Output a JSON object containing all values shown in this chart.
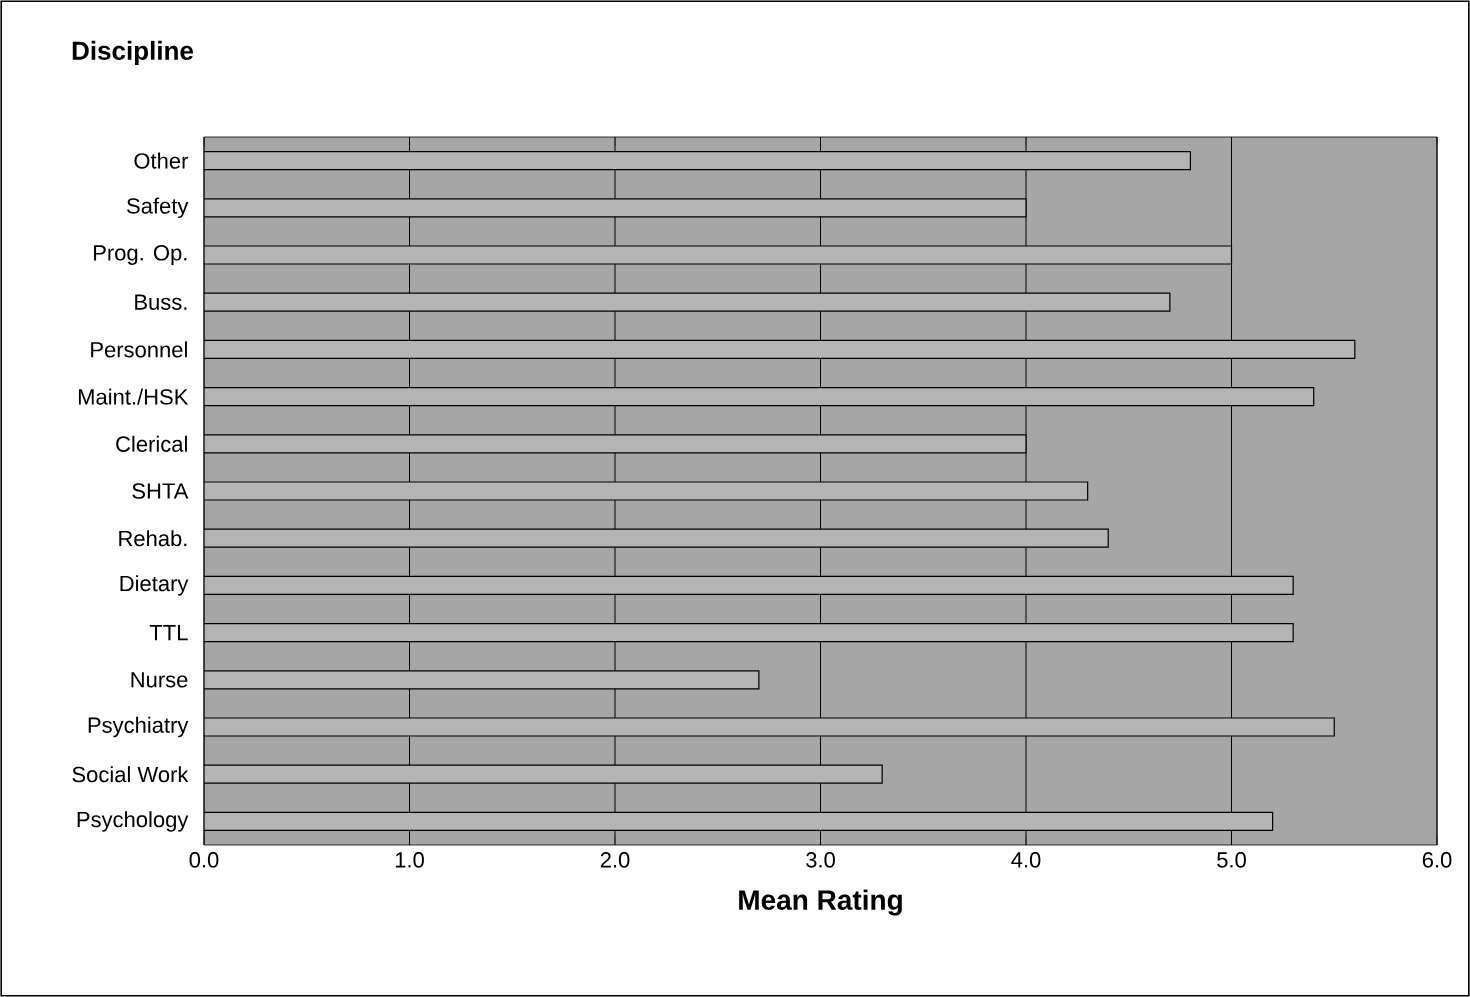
{
  "chart_data": {
    "type": "bar",
    "orientation": "horizontal",
    "title": "Discipline",
    "xlabel": "Mean Rating",
    "categories": [
      "Other",
      "Safety",
      "Prog. Op.",
      "Buss.",
      "Personnel",
      "Maint./HSK",
      "Clerical",
      "SHTA",
      "Rehab.",
      "Dietary",
      "TTL",
      "Nurse",
      "Psychiatry",
      "Social Work",
      "Psychology"
    ],
    "values": [
      4.8,
      4.0,
      5.0,
      4.7,
      5.6,
      5.4,
      4.0,
      4.3,
      4.4,
      5.3,
      5.3,
      2.7,
      5.5,
      3.3,
      5.2
    ],
    "color": "#b4b4b4",
    "xlim": [
      0,
      6
    ],
    "xticks": [
      {
        "value": 0,
        "label": "0.0"
      },
      {
        "value": 1,
        "label": "1.0"
      },
      {
        "value": 2,
        "label": "2.0"
      },
      {
        "value": 3,
        "label": "3.0"
      },
      {
        "value": 4,
        "label": "4.0"
      },
      {
        "value": 5,
        "label": "5.0"
      },
      {
        "value": 6,
        "label": "6.0"
      }
    ],
    "grid": "x"
  }
}
